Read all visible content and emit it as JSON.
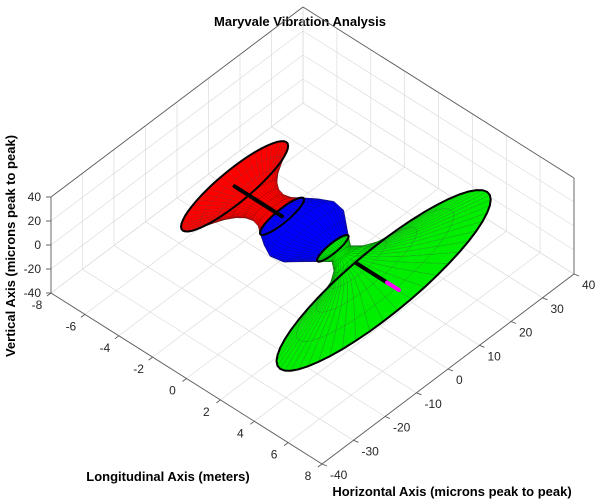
{
  "chart_data": {
    "type": "3d-surface",
    "title": "Maryvale Vibration Analysis",
    "xlabel": "Longitudinal Axis (meters)",
    "ylabel": "Horizontal Axis (microns peak to peak)",
    "zlabel": "Vertical Axis (microns peak to peak)",
    "xlim": [
      -8,
      8
    ],
    "ylim": [
      -40,
      40
    ],
    "zlim": [
      -40,
      40
    ],
    "x_ticks": [
      "-8",
      "-6",
      "-4",
      "-2",
      "0",
      "2",
      "4",
      "6",
      "8"
    ],
    "y_ticks": [
      "-40",
      "-30",
      "-20",
      "-10",
      "0",
      "10",
      "20",
      "30",
      "40"
    ],
    "z_ticks": [
      "-40",
      "-20",
      "0",
      "20",
      "40"
    ],
    "grid": true,
    "segments": [
      {
        "color": "#ff0000",
        "x": [
          -4.6,
          -4.2,
          -3.8,
          -3.4,
          -3.0,
          -2.6,
          -2.2,
          -1.8
        ],
        "radius": [
          17,
          13,
          9.5,
          7,
          5.5,
          5,
          5.5,
          7
        ]
      },
      {
        "color": "#0000ff",
        "x": [
          -1.8,
          -1.2,
          -0.6,
          0.0,
          0.6,
          1.2
        ],
        "radius": [
          7,
          9,
          10.5,
          10,
          7.5,
          5
        ]
      },
      {
        "color": "#00ee00",
        "x": [
          1.2,
          1.7,
          2.2,
          2.7,
          3.2,
          3.7,
          4.2
        ],
        "radius": [
          5,
          3,
          5,
          9,
          16,
          25,
          34
        ]
      }
    ],
    "rotor_lines": [
      {
        "color": "#000000",
        "x": [
          -4.6,
          -1.8
        ]
      },
      {
        "color": "#000000",
        "x": [
          2.6,
          4.4
        ]
      },
      {
        "color": "#ff00ff",
        "x": [
          4.4,
          5.1
        ]
      }
    ]
  }
}
